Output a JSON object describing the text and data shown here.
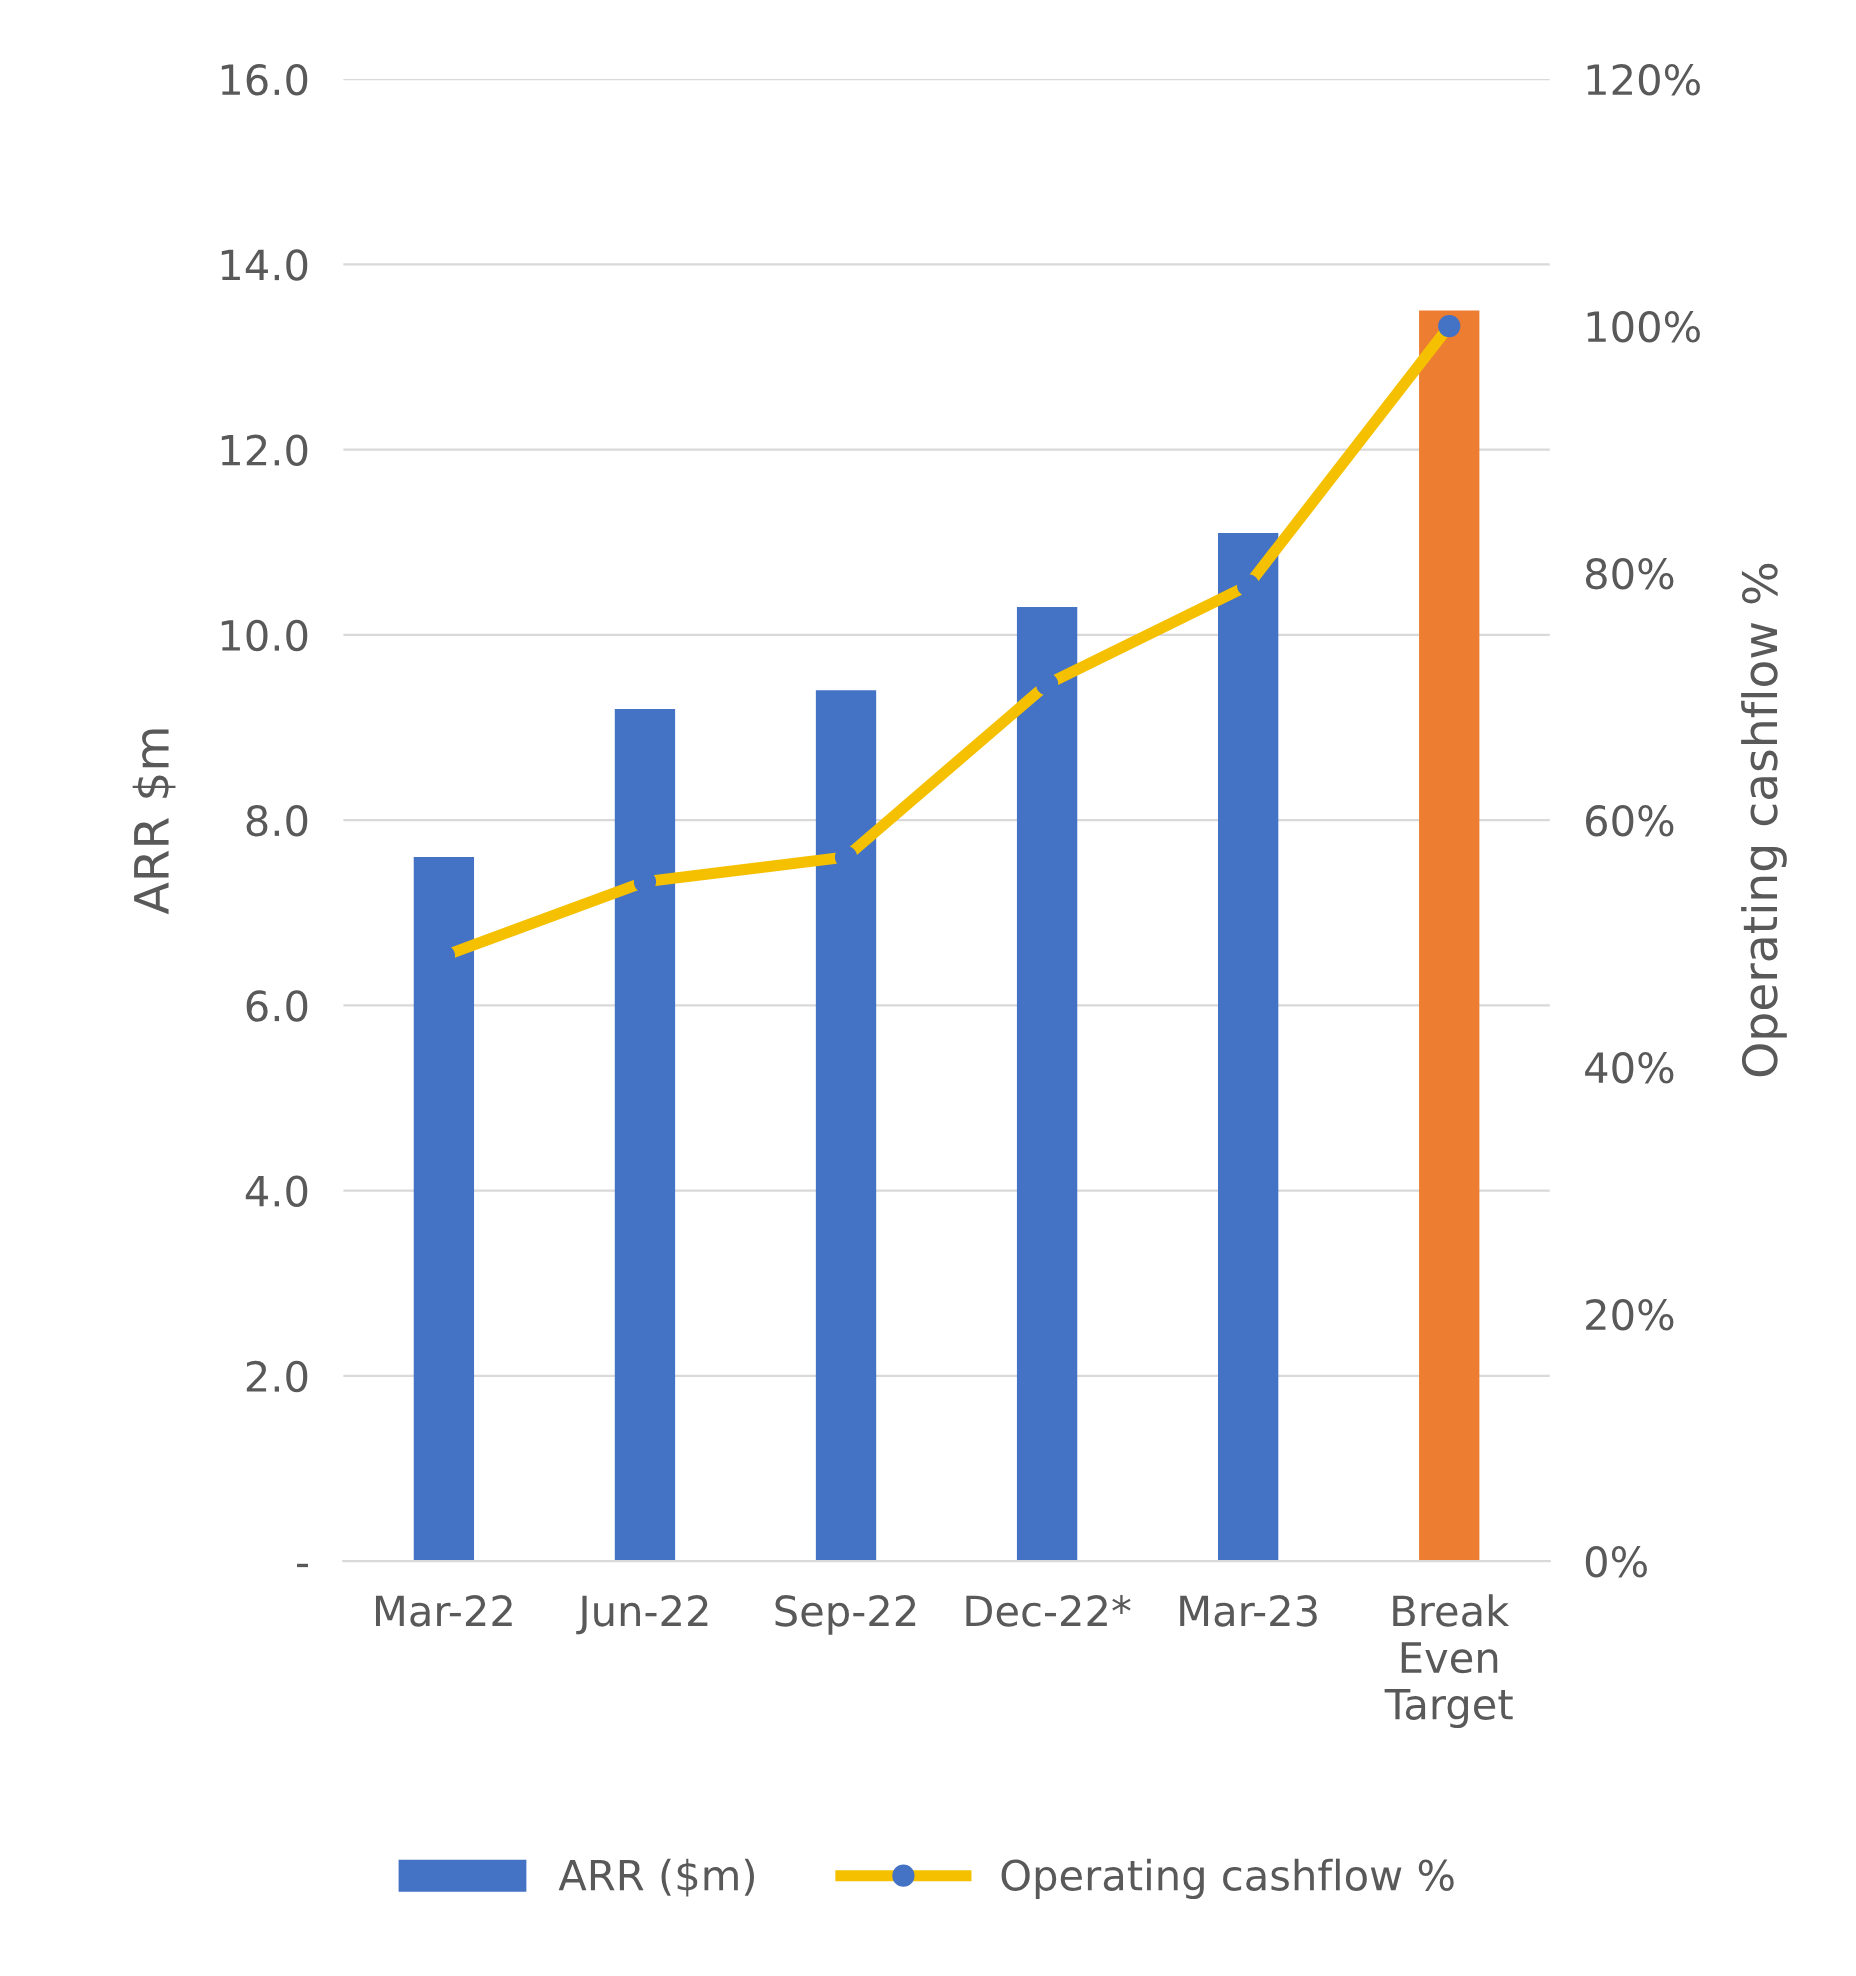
{
  "chart_data": {
    "type": "bar",
    "ylabel": "ARR $m",
    "y2label": "Operating cashflow %",
    "categories": [
      "Mar-22",
      "Jun-22",
      "Sep-22",
      "Dec-22*",
      "Mar-23",
      "Break\nEven\nTarget"
    ],
    "series": [
      {
        "name": "ARR ($m)",
        "color": "#4472c4",
        "colors": [
          "#4472c4",
          "#4472c4",
          "#4472c4",
          "#4472c4",
          "#4472c4",
          "#ed7d31"
        ],
        "values": [
          7.6,
          9.2,
          9.4,
          10.3,
          11.1,
          13.5
        ]
      },
      {
        "name": "Operating cashflow %",
        "type": "line",
        "axis": "y2",
        "color": "#f5c000",
        "values": [
          49,
          55,
          57,
          71,
          79,
          100
        ]
      }
    ],
    "ylim": [
      0,
      16
    ],
    "yticks": [
      {
        "value": 0,
        "label": "-"
      },
      {
        "value": 2,
        "label": "2.0"
      },
      {
        "value": 4,
        "label": "4.0"
      },
      {
        "value": 6,
        "label": "6.0"
      },
      {
        "value": 8,
        "label": "8.0"
      },
      {
        "value": 10,
        "label": "10.0"
      },
      {
        "value": 12,
        "label": "12.0"
      },
      {
        "value": 14,
        "label": "14.0"
      },
      {
        "value": 16,
        "label": "16.0"
      }
    ],
    "y2lim": [
      0,
      120
    ],
    "y2ticks": [
      {
        "value": 0,
        "label": "0%"
      },
      {
        "value": 20,
        "label": "20%"
      },
      {
        "value": 40,
        "label": "40%"
      },
      {
        "value": 60,
        "label": "60%"
      },
      {
        "value": 80,
        "label": "80%"
      },
      {
        "value": 100,
        "label": "100%"
      },
      {
        "value": 120,
        "label": "120%"
      }
    ],
    "grid": "y",
    "legend": "bottom",
    "marker": "circle",
    "line_style": "solid"
  }
}
